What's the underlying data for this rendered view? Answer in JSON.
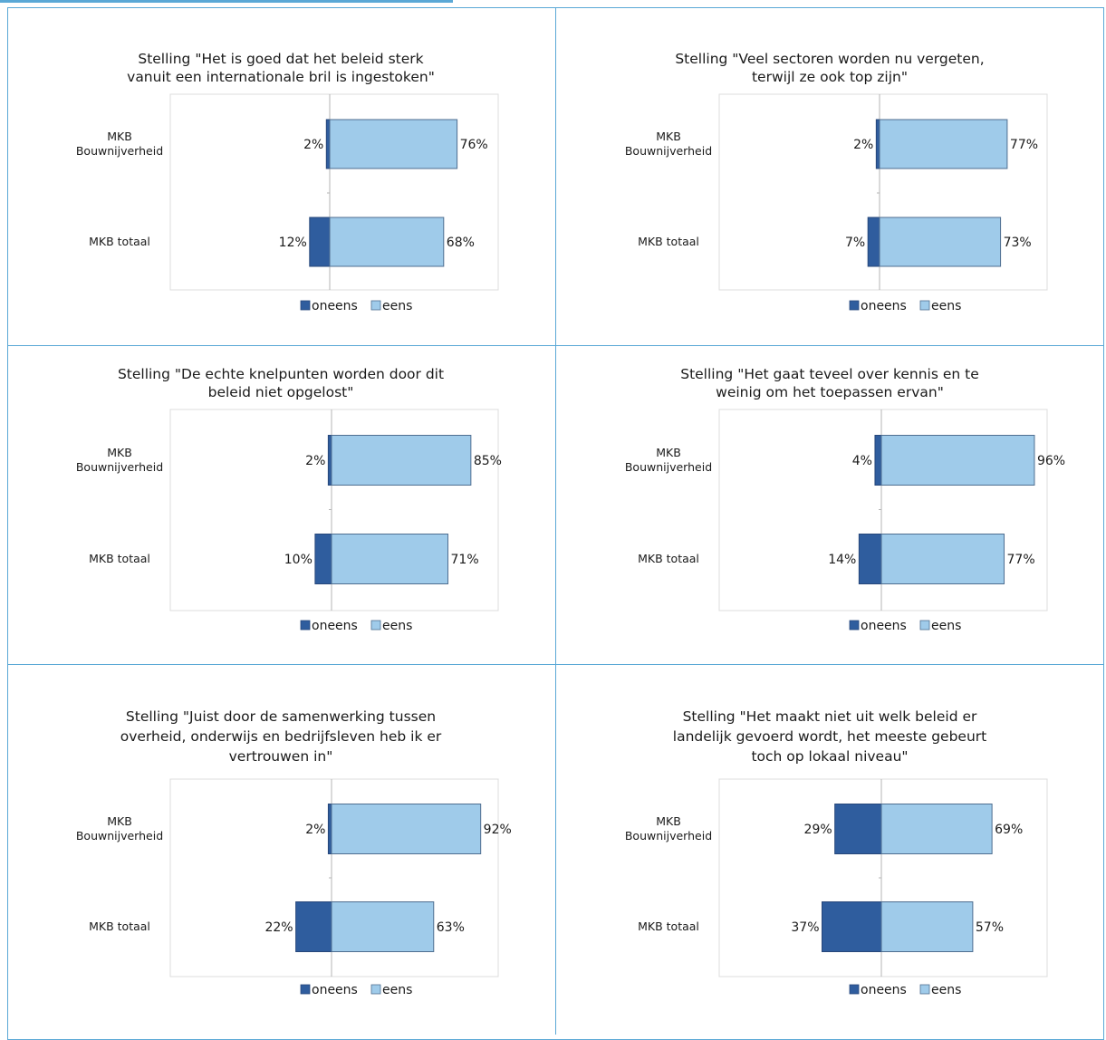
{
  "colors": {
    "oneens": "#2f5d9e",
    "eens": "#9fcbea",
    "border": "#5aa8d6"
  },
  "chart_data": [
    {
      "type": "bar",
      "orientation": "horizontal",
      "stacked": "diverging",
      "title": "Stelling \"Het is goed dat het beleid sterk vanuit een internationale bril is ingestoken\"",
      "title_lines": [
        "Stelling \"Het is goed dat het beleid sterk",
        "vanuit een internationale bril is ingestoken\""
      ],
      "categories": [
        "MKB Bouwnijverheid",
        "MKB totaal"
      ],
      "series": [
        {
          "name": "oneens",
          "values": [
            2,
            12
          ]
        },
        {
          "name": "eens",
          "values": [
            76,
            68
          ]
        }
      ],
      "legend": "bottom"
    },
    {
      "type": "bar",
      "orientation": "horizontal",
      "stacked": "diverging",
      "title": "Stelling \"Veel sectoren worden nu vergeten, terwijl ze ook top zijn\"",
      "title_lines": [
        "Stelling \"Veel sectoren worden nu vergeten,",
        "terwijl ze ook top zijn\""
      ],
      "categories": [
        "MKB Bouwnijverheid",
        "MKB totaal"
      ],
      "series": [
        {
          "name": "oneens",
          "values": [
            2,
            7
          ]
        },
        {
          "name": "eens",
          "values": [
            77,
            73
          ]
        }
      ],
      "legend": "bottom"
    },
    {
      "type": "bar",
      "orientation": "horizontal",
      "stacked": "diverging",
      "title": "Stelling \"De echte knelpunten worden door dit beleid niet opgelost\"",
      "title_lines": [
        "Stelling \"De echte knelpunten worden door dit",
        "beleid niet opgelost\""
      ],
      "categories": [
        "MKB Bouwnijverheid",
        "MKB totaal"
      ],
      "series": [
        {
          "name": "oneens",
          "values": [
            2,
            10
          ]
        },
        {
          "name": "eens",
          "values": [
            85,
            71
          ]
        }
      ],
      "legend": "bottom"
    },
    {
      "type": "bar",
      "orientation": "horizontal",
      "stacked": "diverging",
      "title": "Stelling \"Het gaat teveel over kennis en te weinig om het toepassen ervan\"",
      "title_lines": [
        "Stelling \"Het gaat teveel over kennis en te",
        "weinig om het toepassen ervan\""
      ],
      "categories": [
        "MKB Bouwnijverheid",
        "MKB totaal"
      ],
      "series": [
        {
          "name": "oneens",
          "values": [
            4,
            14
          ]
        },
        {
          "name": "eens",
          "values": [
            96,
            77
          ]
        }
      ],
      "legend": "bottom"
    },
    {
      "type": "bar",
      "orientation": "horizontal",
      "stacked": "diverging",
      "title": "Stelling \"Juist door de samenwerking tussen overheid, onderwijs en bedrijfsleven heb ik er vertrouwen in\"",
      "title_lines": [
        "Stelling \"Juist door de samenwerking tussen",
        "overheid, onderwijs en bedrijfsleven heb ik er",
        "vertrouwen in\""
      ],
      "categories": [
        "MKB Bouwnijverheid",
        "MKB totaal"
      ],
      "series": [
        {
          "name": "oneens",
          "values": [
            2,
            22
          ]
        },
        {
          "name": "eens",
          "values": [
            92,
            63
          ]
        }
      ],
      "legend": "bottom"
    },
    {
      "type": "bar",
      "orientation": "horizontal",
      "stacked": "diverging",
      "title": "Stelling \"Het maakt niet uit welk beleid er landelijk gevoerd wordt, het meeste gebeurt toch op lokaal niveau\"",
      "title_lines": [
        "Stelling \"Het maakt niet uit welk beleid er",
        "landelijk gevoerd wordt, het meeste gebeurt",
        "toch op lokaal niveau\""
      ],
      "categories": [
        "MKB Bouwnijverheid",
        "MKB totaal"
      ],
      "series": [
        {
          "name": "oneens",
          "values": [
            29,
            37
          ]
        },
        {
          "name": "eens",
          "values": [
            69,
            57
          ]
        }
      ],
      "legend": "bottom"
    }
  ]
}
